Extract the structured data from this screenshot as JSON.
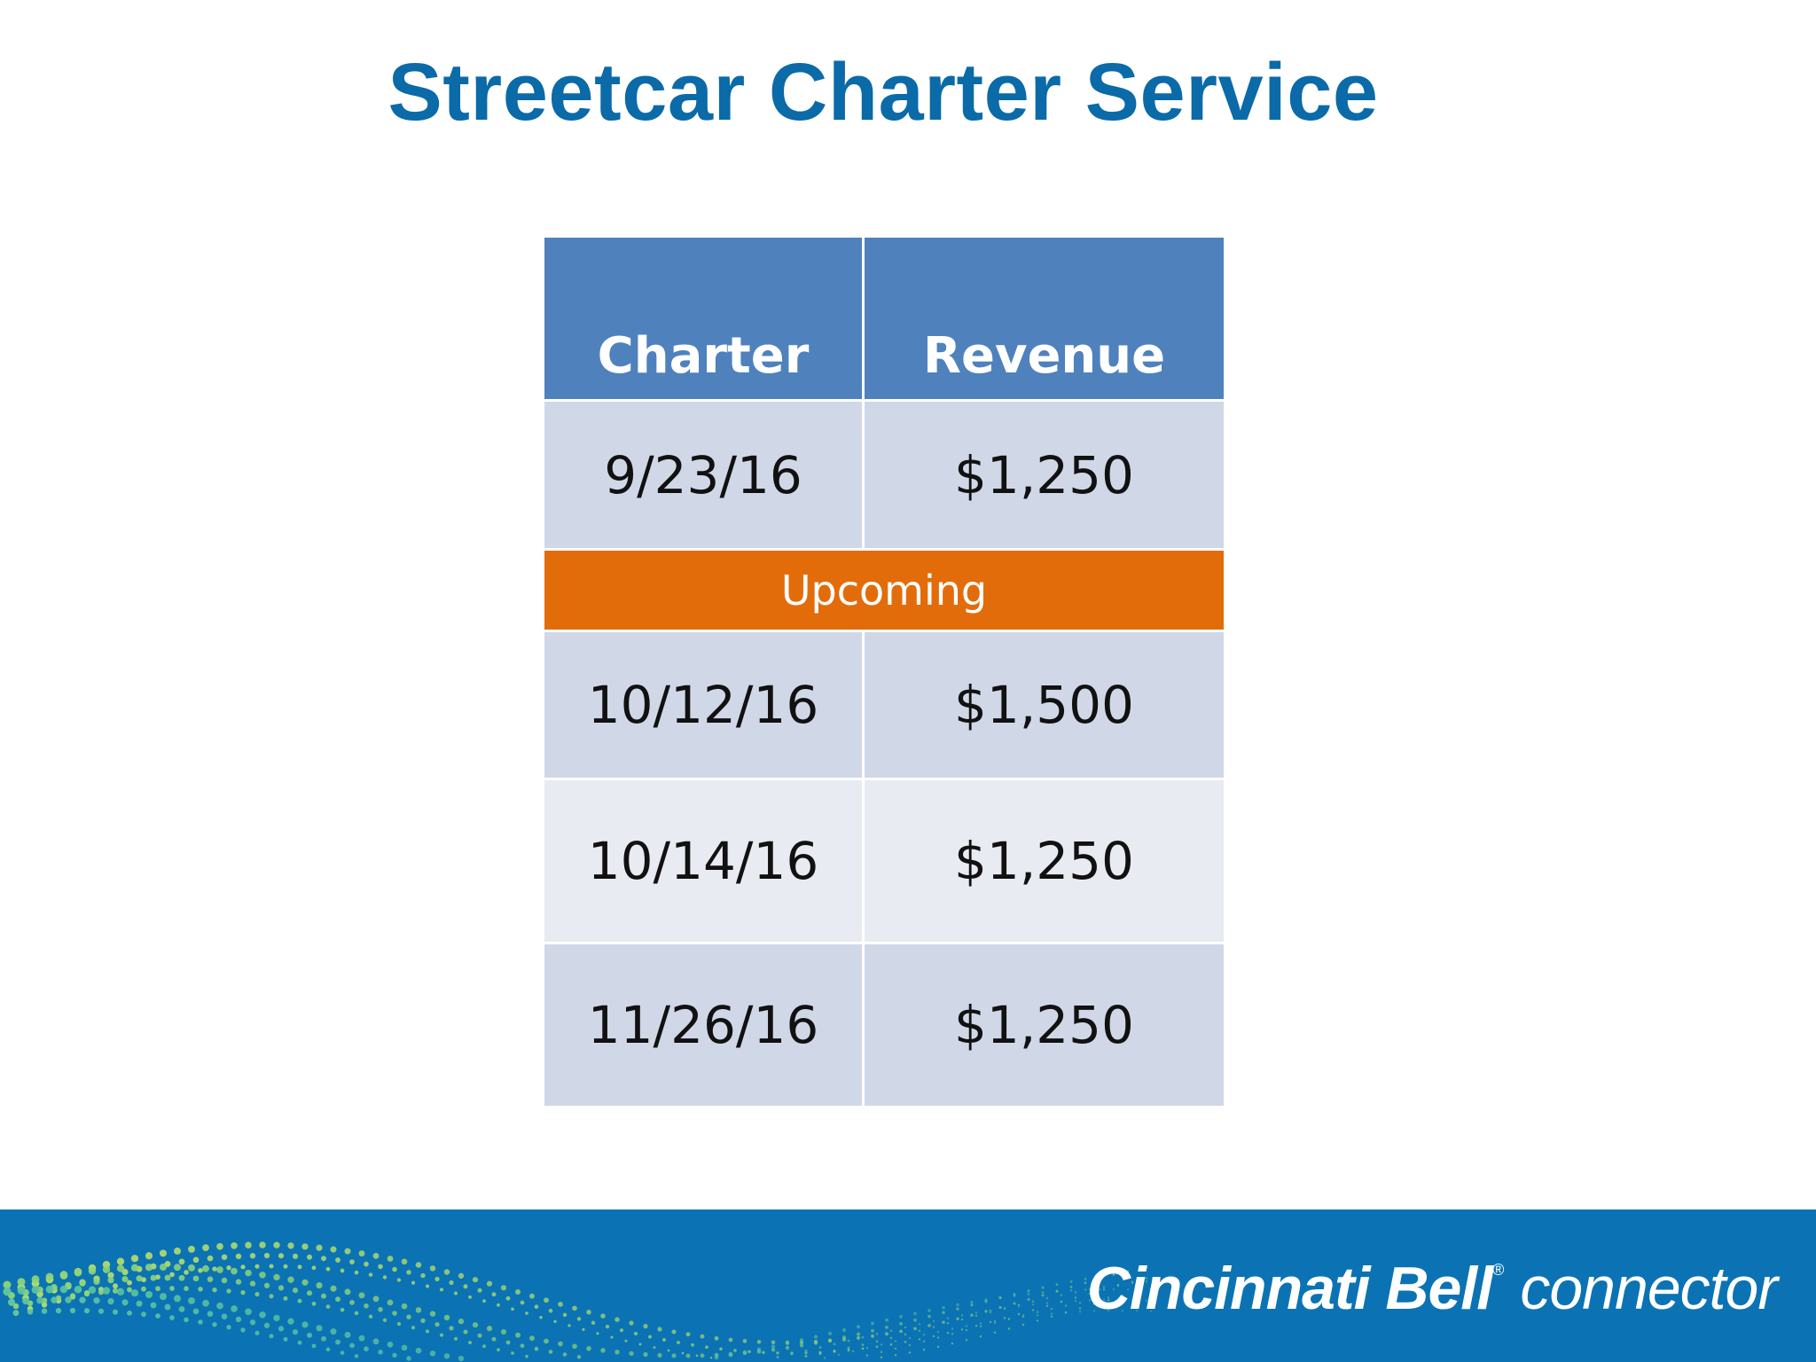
{
  "title": "Streetcar Charter Service",
  "table": {
    "headers": {
      "charter": "Charter",
      "revenue": "Revenue"
    },
    "past_rows": [
      {
        "charter": "9/23/16",
        "revenue": "$1,250"
      }
    ],
    "section_label": "Upcoming",
    "upcoming_rows": [
      {
        "charter": "10/12/16",
        "revenue": "$1,500"
      },
      {
        "charter": "10/14/16",
        "revenue": "$1,250"
      },
      {
        "charter": "11/26/16",
        "revenue": "$1,250"
      }
    ]
  },
  "footer": {
    "brand_name": "Cincinnati Bell",
    "brand_reg": "®",
    "brand_sub": "connector"
  },
  "colors": {
    "title": "#0b6aa8",
    "header": "#4f81bd",
    "upcoming": "#e36c0a",
    "row_dark": "#d0d8e8",
    "row_light": "#e9ebf3",
    "footer": "#0b73b3"
  }
}
